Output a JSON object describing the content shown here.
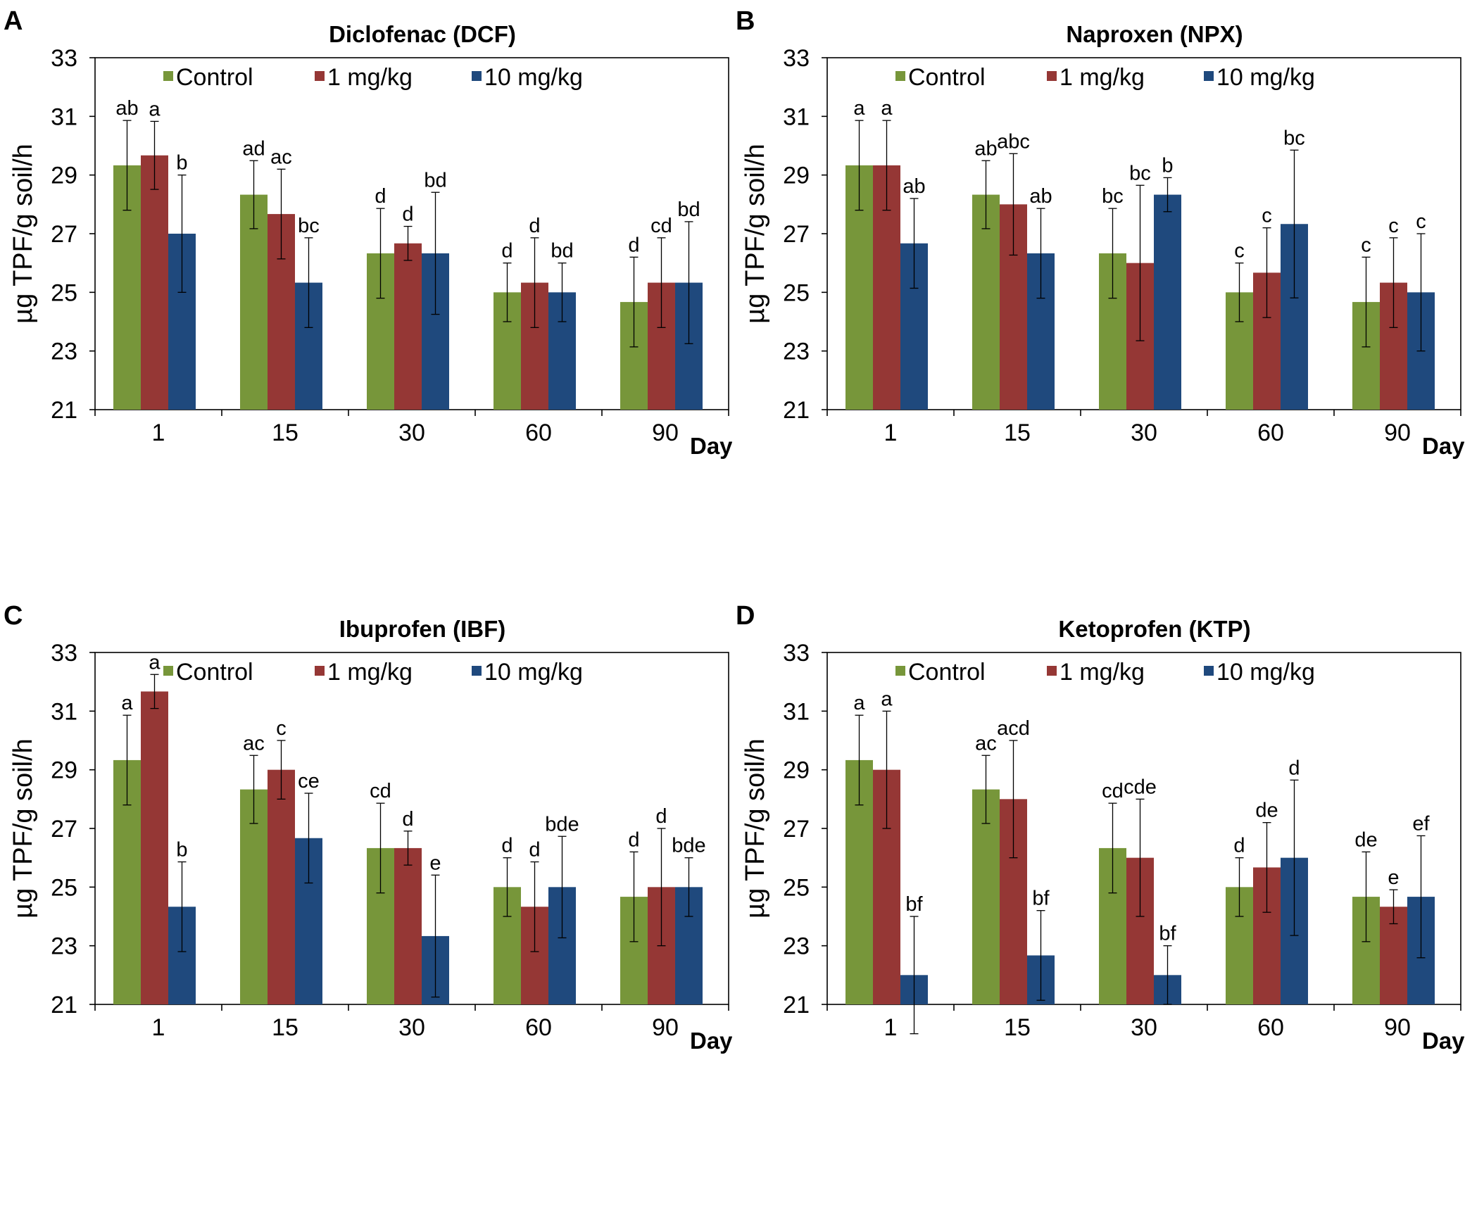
{
  "colors": {
    "control": "#77963a",
    "low": "#953735",
    "high": "#1f497d"
  },
  "chart_data": [
    {
      "type": "bar",
      "panel": "A",
      "title": "Diclofenac (DCF)",
      "ylabel": "µg TPF/g soil/h",
      "xlabel": "Day",
      "ylim": [
        21,
        33
      ],
      "yticks": [
        21,
        23,
        25,
        27,
        29,
        31,
        33
      ],
      "categories": [
        "1",
        "15",
        "30",
        "60",
        "90"
      ],
      "series": [
        {
          "name": "Control",
          "values": [
            29.33,
            28.33,
            26.33,
            25.0,
            24.67
          ],
          "errors": [
            1.53,
            1.16,
            1.53,
            1.0,
            1.53
          ],
          "labels": [
            "ab",
            "ad",
            "d",
            "d",
            "d"
          ]
        },
        {
          "name": "1 mg/kg",
          "values": [
            29.67,
            27.67,
            26.67,
            25.33,
            25.33
          ],
          "errors": [
            1.16,
            1.53,
            0.58,
            1.53,
            1.53
          ],
          "labels": [
            "a",
            "ac",
            "d",
            "d",
            "cd"
          ]
        },
        {
          "name": "10 mg/kg",
          "values": [
            27.0,
            25.33,
            26.33,
            25.0,
            25.33
          ],
          "errors": [
            2.0,
            1.53,
            2.08,
            1.0,
            2.08
          ],
          "labels": [
            "b",
            "bc",
            "bd",
            "bd",
            "bd"
          ]
        }
      ]
    },
    {
      "type": "bar",
      "panel": "B",
      "title": "Naproxen (NPX)",
      "ylabel": "µg TPF/g soil/h",
      "xlabel": "Day",
      "ylim": [
        21,
        33
      ],
      "yticks": [
        21,
        23,
        25,
        27,
        29,
        31,
        33
      ],
      "categories": [
        "1",
        "15",
        "30",
        "60",
        "90"
      ],
      "series": [
        {
          "name": "Control",
          "values": [
            29.33,
            28.33,
            26.33,
            25.0,
            24.67
          ],
          "errors": [
            1.53,
            1.16,
            1.53,
            1.0,
            1.53
          ],
          "labels": [
            "a",
            "ab",
            "bc",
            "c",
            "c"
          ]
        },
        {
          "name": "1 mg/kg",
          "values": [
            29.33,
            28.0,
            26.0,
            25.67,
            25.33
          ],
          "errors": [
            1.53,
            1.73,
            2.65,
            1.53,
            1.53
          ],
          "labels": [
            "a",
            "abc",
            "bc",
            "c",
            "c"
          ]
        },
        {
          "name": "10 mg/kg",
          "values": [
            26.67,
            26.33,
            28.33,
            27.33,
            25.0
          ],
          "errors": [
            1.53,
            1.53,
            0.58,
            2.52,
            2.0
          ],
          "labels": [
            "ab",
            "ab",
            "b",
            "bc",
            "c"
          ]
        }
      ]
    },
    {
      "type": "bar",
      "panel": "C",
      "title": "Ibuprofen (IBF)",
      "ylabel": "µg TPF/g soil/h",
      "xlabel": "Day",
      "ylim": [
        21,
        33
      ],
      "yticks": [
        21,
        23,
        25,
        27,
        29,
        31,
        33
      ],
      "categories": [
        "1",
        "15",
        "30",
        "60",
        "90"
      ],
      "series": [
        {
          "name": "Control",
          "values": [
            29.33,
            28.33,
            26.33,
            25.0,
            24.67
          ],
          "errors": [
            1.53,
            1.16,
            1.53,
            1.0,
            1.53
          ],
          "labels": [
            "a",
            "ac",
            "cd",
            "d",
            "d"
          ]
        },
        {
          "name": "1 mg/kg",
          "values": [
            31.67,
            29.0,
            26.33,
            24.33,
            25.0
          ],
          "errors": [
            0.58,
            1.0,
            0.58,
            1.53,
            2.0
          ],
          "labels": [
            "a",
            "c",
            "d",
            "d",
            "d"
          ]
        },
        {
          "name": "10 mg/kg",
          "values": [
            24.33,
            26.67,
            23.33,
            25.0,
            25.0
          ],
          "errors": [
            1.53,
            1.53,
            2.08,
            1.73,
            1.0
          ],
          "labels": [
            "b",
            "ce",
            "e",
            "bde",
            "bde"
          ]
        }
      ]
    },
    {
      "type": "bar",
      "panel": "D",
      "title": "Ketoprofen (KTP)",
      "ylabel": "µg TPF/g soil/h",
      "xlabel": "Day",
      "ylim": [
        21,
        33
      ],
      "yticks": [
        21,
        23,
        25,
        27,
        29,
        31,
        33
      ],
      "categories": [
        "1",
        "15",
        "30",
        "60",
        "90"
      ],
      "series": [
        {
          "name": "Control",
          "values": [
            29.33,
            28.33,
            26.33,
            25.0,
            24.67
          ],
          "errors": [
            1.53,
            1.16,
            1.53,
            1.0,
            1.53
          ],
          "labels": [
            "a",
            "ac",
            "cd",
            "d",
            "de"
          ]
        },
        {
          "name": "1 mg/kg",
          "values": [
            29.0,
            28.0,
            26.0,
            25.67,
            24.33
          ],
          "errors": [
            2.0,
            2.0,
            2.0,
            1.53,
            0.58
          ],
          "labels": [
            "a",
            "acd",
            "cde",
            "de",
            "e"
          ]
        },
        {
          "name": "10 mg/kg",
          "values": [
            22.0,
            22.67,
            22.0,
            26.0,
            24.67
          ],
          "errors": [
            2.0,
            1.53,
            1.0,
            2.65,
            2.08
          ],
          "labels": [
            "bf",
            "bf",
            "bf",
            "d",
            "ef"
          ]
        }
      ]
    }
  ]
}
